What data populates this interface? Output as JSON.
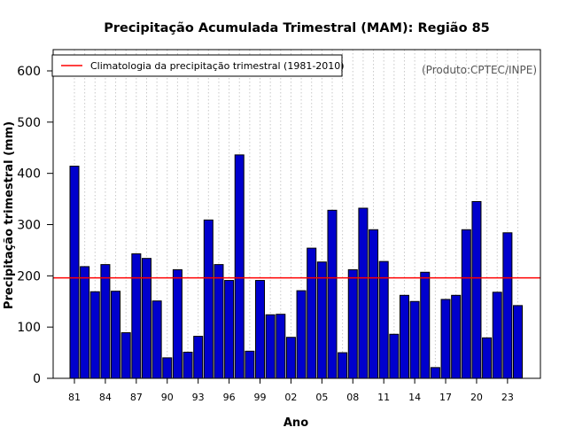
{
  "chart_data": {
    "type": "bar",
    "title": "Precipitação Acumulada Trimestral (MAM): Região 85",
    "xlabel": "Ano",
    "ylabel": "Precipitação trimestral (mm)",
    "ylim": [
      0,
      640
    ],
    "yticks": [
      0,
      100,
      200,
      300,
      400,
      500,
      600
    ],
    "categories": [
      "81",
      "82",
      "83",
      "84",
      "85",
      "86",
      "87",
      "88",
      "89",
      "90",
      "91",
      "92",
      "93",
      "94",
      "95",
      "96",
      "97",
      "98",
      "99",
      "00",
      "01",
      "02",
      "03",
      "04",
      "05",
      "06",
      "07",
      "08",
      "09",
      "10",
      "11",
      "12",
      "13",
      "14",
      "15",
      "16",
      "17",
      "18",
      "19",
      "20",
      "21",
      "22",
      "23",
      "24"
    ],
    "xtick_labels": [
      "81",
      "84",
      "87",
      "90",
      "93",
      "96",
      "99",
      "02",
      "05",
      "08",
      "11",
      "14",
      "17",
      "20",
      "23"
    ],
    "values": [
      414,
      218,
      169,
      222,
      170,
      89,
      243,
      234,
      151,
      40,
      212,
      51,
      82,
      309,
      222,
      191,
      436,
      53,
      191,
      124,
      125,
      80,
      171,
      254,
      227,
      328,
      50,
      212,
      332,
      290,
      228,
      86,
      162,
      150,
      207,
      21,
      154,
      162,
      290,
      345,
      79,
      168,
      284,
      142
    ],
    "reference_line": {
      "value": 196,
      "color": "#ff0000",
      "label": "Climatologia da precipitação trimestral (1981-2010)"
    },
    "bar_color": "#0000cd",
    "grid": "vertical dotted",
    "legend_position": "top-left",
    "credit": "(Produto:CPTEC/INPE)"
  }
}
